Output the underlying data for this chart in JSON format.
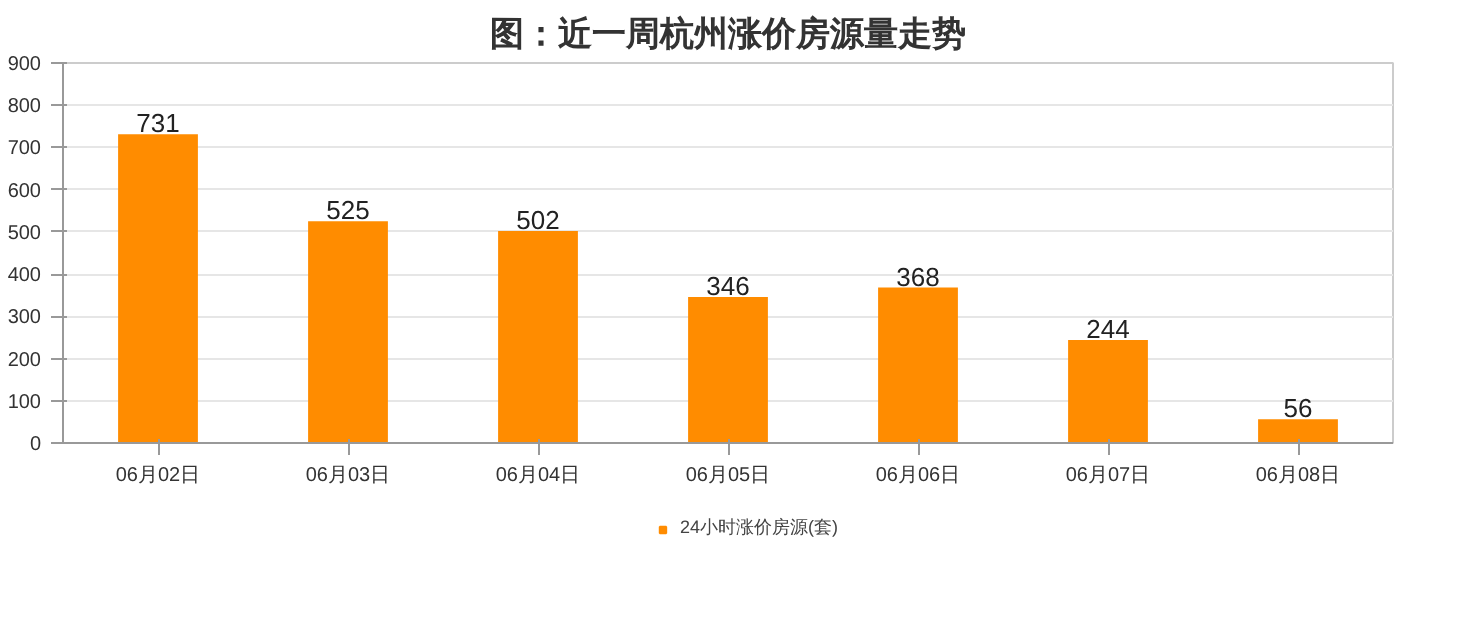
{
  "chart_data": {
    "type": "bar",
    "title": "图：近一周杭州涨价房源量走势",
    "categories": [
      "06月02日",
      "06月03日",
      "06月04日",
      "06月05日",
      "06月06日",
      "06月07日",
      "06月08日"
    ],
    "series": [
      {
        "name": "24小时涨价房源(套)",
        "color": "#ff8c00",
        "values": [
          731,
          525,
          502,
          346,
          368,
          244,
          56
        ]
      }
    ],
    "ylim": [
      0,
      900
    ],
    "yticks": [
      0,
      100,
      200,
      300,
      400,
      500,
      600,
      700,
      800,
      900
    ],
    "grid": "y",
    "legend": "bottom",
    "data_labels": true
  }
}
